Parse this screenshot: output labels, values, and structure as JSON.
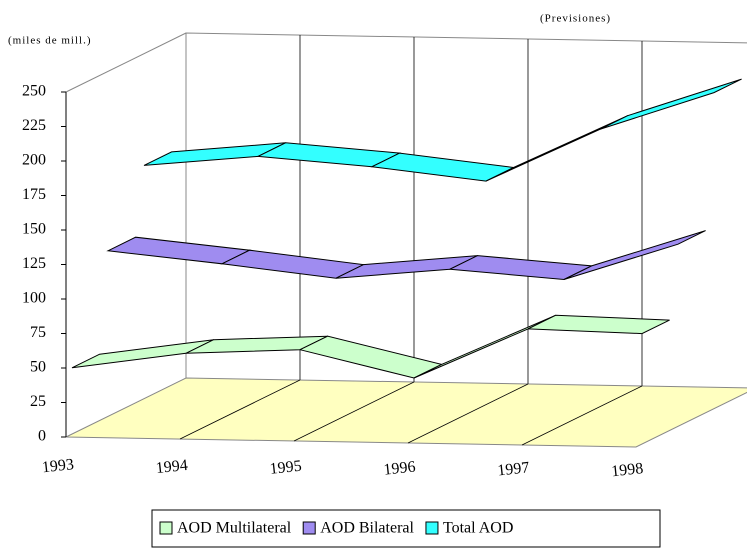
{
  "chart_data": {
    "type": "line3d",
    "y_axis_label": "(miles de mill.)",
    "annotation": "(Previsiones)",
    "categories": [
      "1993",
      "1994",
      "1995",
      "1996",
      "1997",
      "1998"
    ],
    "ylim": [
      0,
      250
    ],
    "yticks": [
      0,
      25,
      50,
      75,
      100,
      125,
      150,
      175,
      200,
      225,
      250
    ],
    "series": [
      {
        "name": "AOD Multilateral",
        "color": "#ccffcc",
        "values": [
          48,
          60,
          64,
          45,
          82,
          80
        ]
      },
      {
        "name": "AOD Bilateral",
        "color": "#9f8cf0",
        "values": [
          120,
          112,
          103,
          111,
          105,
          132
        ]
      },
      {
        "name": "Total AOD",
        "color": "#33ffff",
        "values": [
          169,
          177,
          171,
          162,
          201,
          229
        ]
      }
    ],
    "legend": "bottom"
  }
}
